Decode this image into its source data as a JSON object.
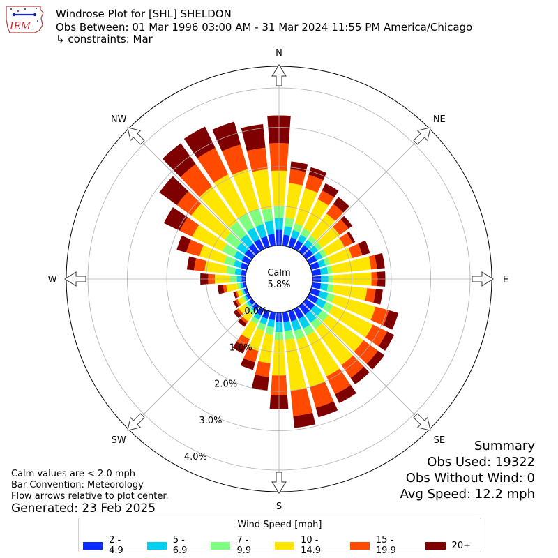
{
  "header": {
    "logo_text": "IEM",
    "title_line1": "Windrose Plot for [SHL] SHELDON",
    "title_line2": "Obs Between: 01 Mar 1996 03:00 AM - 31 Mar 2024 11:55 PM America/Chicago",
    "title_line3": "↳ constraints: Mar"
  },
  "notes": {
    "calm_note": "Calm values are < 2.0 mph",
    "bar_convention": "Bar Convention: Meteorology",
    "flow_arrows": "Flow arrows relative to plot center.",
    "generated": "Generated: 23 Feb 2025"
  },
  "summary": {
    "title": "Summary",
    "obs_used": "Obs Used: 19322",
    "obs_without_wind": "Obs Without Wind: 0",
    "avg_speed": "Avg Speed: 12.2 mph"
  },
  "chart_data": {
    "type": "windrose",
    "calm_label": "Calm",
    "calm_value": "5.8%",
    "radial_ticks": [
      0,
      1,
      2,
      3,
      4
    ],
    "radial_tick_labels": [
      "0.0%",
      "1.0%",
      "2.0%",
      "3.0%",
      "4.0%"
    ],
    "compass_labels": [
      "N",
      "NE",
      "E",
      "SE",
      "S",
      "SW",
      "W",
      "NW"
    ],
    "legend_title": "Wind Speed [mph]",
    "bins": [
      {
        "name": "2 - 4.9",
        "color": "#0a2aff"
      },
      {
        "name": "5 - 6.9",
        "color": "#00d0f0"
      },
      {
        "name": "7 - 9.9",
        "color": "#7fff7f"
      },
      {
        "name": "10 - 14.9",
        "color": "#ffe600"
      },
      {
        "name": "15 - 19.9",
        "color": "#ff4a00"
      },
      {
        "name": "20+",
        "color": "#7f0000"
      }
    ],
    "directions_deg": [
      0,
      10,
      20,
      30,
      40,
      50,
      60,
      70,
      80,
      90,
      100,
      110,
      120,
      130,
      140,
      150,
      160,
      170,
      180,
      190,
      200,
      210,
      220,
      230,
      240,
      250,
      260,
      270,
      280,
      290,
      300,
      310,
      320,
      330,
      340,
      350
    ],
    "cumulative": [
      [
        0.4,
        0.7,
        1.0,
        1.9,
        2.6,
        3.3
      ],
      [
        0.28,
        0.5,
        0.72,
        1.6,
        1.95,
        2.15
      ],
      [
        0.25,
        0.44,
        0.62,
        1.55,
        1.9,
        2.1
      ],
      [
        0.23,
        0.4,
        0.58,
        1.4,
        1.65,
        1.85
      ],
      [
        0.22,
        0.38,
        0.52,
        1.2,
        1.5,
        1.72
      ],
      [
        0.22,
        0.38,
        0.5,
        1.05,
        1.33,
        1.45
      ],
      [
        0.22,
        0.38,
        0.5,
        1.0,
        1.23,
        1.3
      ],
      [
        0.22,
        0.38,
        0.5,
        1.08,
        1.35,
        1.55
      ],
      [
        0.22,
        0.4,
        0.52,
        1.5,
        1.65,
        1.85
      ],
      [
        0.22,
        0.4,
        0.52,
        1.5,
        1.65,
        1.85
      ],
      [
        0.22,
        0.4,
        0.55,
        1.4,
        1.62,
        1.8
      ],
      [
        0.24,
        0.45,
        0.62,
        1.7,
        2.05,
        2.3
      ],
      [
        0.26,
        0.48,
        0.68,
        1.8,
        2.2,
        2.4
      ],
      [
        0.27,
        0.5,
        0.7,
        1.8,
        2.25,
        2.45
      ],
      [
        0.27,
        0.52,
        0.72,
        1.85,
        2.25,
        2.45
      ],
      [
        0.28,
        0.55,
        0.75,
        1.9,
        2.4,
        2.65
      ],
      [
        0.27,
        0.52,
        0.75,
        2.0,
        2.55,
        2.8
      ],
      [
        0.25,
        0.48,
        0.7,
        2.0,
        2.65,
        2.95
      ],
      [
        0.25,
        0.5,
        0.7,
        1.6,
        2.1,
        2.45
      ],
      [
        0.2,
        0.38,
        0.58,
        1.3,
        1.65,
        2.0
      ],
      [
        0.2,
        0.35,
        0.52,
        1.05,
        1.35,
        1.55
      ],
      [
        0.18,
        0.3,
        0.42,
        0.85,
        1.07,
        1.25
      ],
      [
        0.12,
        0.18,
        0.28,
        0.48,
        0.55,
        0.65
      ],
      [
        0.1,
        0.16,
        0.22,
        0.42,
        0.48,
        0.58
      ],
      [
        0.08,
        0.13,
        0.18,
        0.32,
        0.38,
        0.45
      ],
      [
        0.08,
        0.12,
        0.16,
        0.26,
        0.3,
        0.36
      ],
      [
        0.08,
        0.14,
        0.22,
        0.5,
        0.58,
        0.72
      ],
      [
        0.1,
        0.22,
        0.4,
        0.78,
        0.95,
        1.15
      ],
      [
        0.12,
        0.28,
        0.5,
        1.05,
        1.32,
        1.5
      ],
      [
        0.17,
        0.35,
        0.6,
        1.25,
        1.6,
        1.85
      ],
      [
        0.2,
        0.42,
        0.75,
        1.6,
        1.95,
        2.4
      ],
      [
        0.23,
        0.48,
        0.85,
        1.9,
        2.35,
        2.9
      ],
      [
        0.26,
        0.55,
        0.95,
        2.05,
        2.75,
        3.4
      ],
      [
        0.28,
        0.6,
        1.0,
        2.1,
        2.85,
        3.45
      ],
      [
        0.28,
        0.6,
        1.0,
        2.05,
        2.7,
        3.3
      ],
      [
        0.3,
        0.64,
        0.95,
        1.95,
        2.5,
        3.1
      ]
    ]
  }
}
